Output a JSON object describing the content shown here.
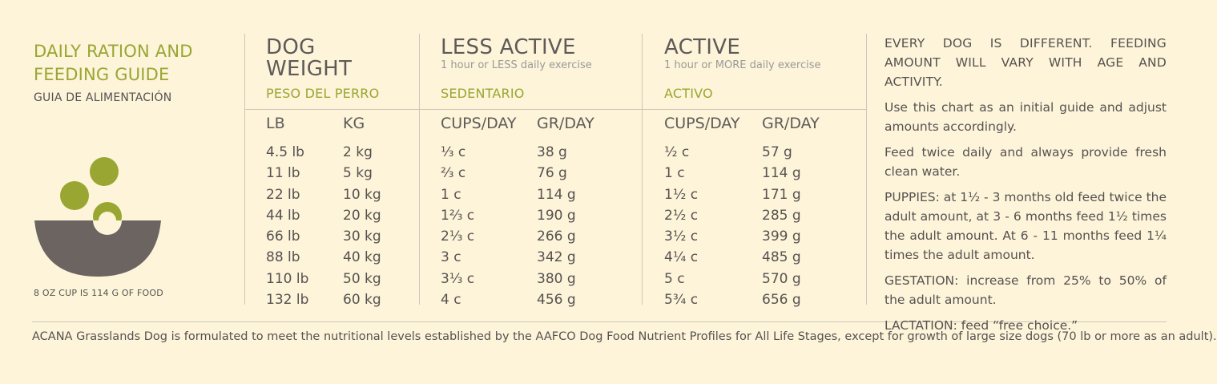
{
  "header": {
    "title_line1": "DAILY RATION AND",
    "title_line2": "FEEDING GUIDE",
    "subtitle": "GUIA DE ALIMENTACIÓN",
    "cup_note": "8 OZ CUP IS 114 G OF FOOD"
  },
  "columns": {
    "weight": {
      "title_line1": "DOG",
      "title_line2": "WEIGHT",
      "spanish": "PESO DEL PERRO",
      "unit1": "LB",
      "unit2": "KG"
    },
    "less_active": {
      "title": "LESS ACTIVE",
      "subtitle": "1 hour or LESS daily exercise",
      "spanish": "SEDENTARIO",
      "unit1": "CUPS/DAY",
      "unit2": "GR/DAY"
    },
    "active": {
      "title": "ACTIVE",
      "subtitle": "1 hour or MORE daily exercise",
      "spanish": "ACTIVO",
      "unit1": "CUPS/DAY",
      "unit2": "GR/DAY"
    }
  },
  "rows": [
    {
      "lb": "4.5 lb",
      "kg": "2 kg",
      "less_cups": "⅓ c",
      "less_gr": "38 g",
      "active_cups": "½ c",
      "active_gr": "57 g"
    },
    {
      "lb": "11 lb",
      "kg": "5 kg",
      "less_cups": "⅔ c",
      "less_gr": "76 g",
      "active_cups": "1 c",
      "active_gr": "114 g"
    },
    {
      "lb": "22 lb",
      "kg": "10 kg",
      "less_cups": "1 c",
      "less_gr": "114 g",
      "active_cups": "1½ c",
      "active_gr": "171 g"
    },
    {
      "lb": "44 lb",
      "kg": "20 kg",
      "less_cups": "1⅔ c",
      "less_gr": "190 g",
      "active_cups": "2½ c",
      "active_gr": "285 g"
    },
    {
      "lb": "66 lb",
      "kg": "30 kg",
      "less_cups": "2⅓ c",
      "less_gr": "266 g",
      "active_cups": "3½ c",
      "active_gr": "399 g"
    },
    {
      "lb": "88 lb",
      "kg": "40 kg",
      "less_cups": "3 c",
      "less_gr": "342 g",
      "active_cups": "4¼ c",
      "active_gr": "485 g"
    },
    {
      "lb": "110 lb",
      "kg": "50 kg",
      "less_cups": "3⅓ c",
      "less_gr": "380 g",
      "active_cups": "5 c",
      "active_gr": "570 g"
    },
    {
      "lb": "132 lb",
      "kg": "60 kg",
      "less_cups": "4 c",
      "less_gr": "456 g",
      "active_cups": "5¾ c",
      "active_gr": "656 g"
    }
  ],
  "notes": {
    "p1": "EVERY DOG IS DIFFERENT. FEEDING AMOUNT WILL VARY WITH AGE AND ACTIVITY.",
    "p2": "Use this chart as an initial guide and adjust amounts accordingly.",
    "p3": "Feed twice daily and always provide fresh clean water.",
    "p4": "PUPPIES: at 1½ - 3 months old feed twice the adult amount, at 3 - 6 months feed 1½ times the adult amount. At 6 - 11 months feed 1¼ times the adult amount.",
    "p5": "GESTATION: increase from 25% to 50% of the adult amount.",
    "p6": "LACTATION: feed “free choice.”"
  },
  "footer": "ACANA Grasslands Dog is formulated to meet the nutritional levels established by the AAFCO Dog Food Nutrient Profiles for All Life Stages, except for growth of large size dogs (70 lb or more as an adult).",
  "colors": {
    "background": "#fdf4da",
    "accent_green": "#9aa632",
    "bowl_gray": "#6b6461",
    "text": "#56524f"
  },
  "icons": {
    "bowl": "food-bowl-icon"
  }
}
